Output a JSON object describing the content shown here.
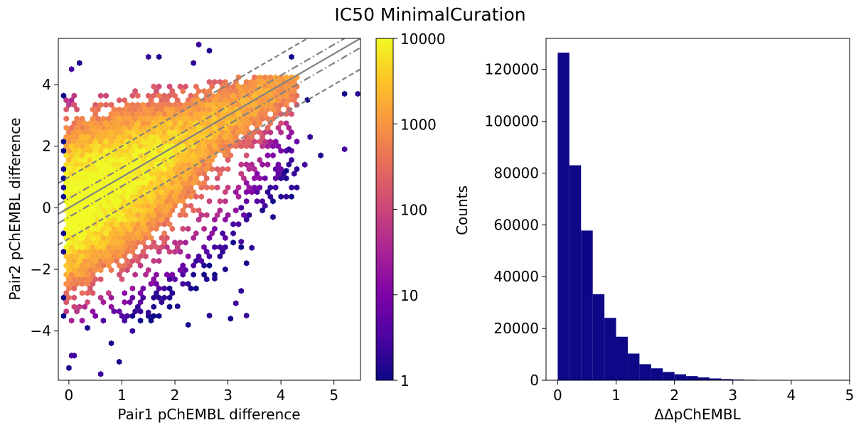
{
  "figure": {
    "title": "IC50 MinimalCuration"
  },
  "chart_data": [
    {
      "type": "hexbin",
      "xlabel": "Pair1 pChEMBL difference",
      "ylabel": "Pair2 pChEMBL difference",
      "xlim": [
        -0.2,
        5.5
      ],
      "ylim": [
        -5.6,
        5.5
      ],
      "xticks": [
        0,
        1,
        2,
        3,
        4,
        5
      ],
      "yticks": [
        -4,
        -2,
        0,
        2,
        4
      ],
      "colorscale": "plasma",
      "color_scale_type": "log",
      "grid": false,
      "reference_lines": [
        {
          "style": "solid",
          "slope": 1,
          "intercept": 0
        },
        {
          "style": "dashdot",
          "slope": 1,
          "intercept": 0.3
        },
        {
          "style": "dashdot",
          "slope": 1,
          "intercept": -0.3
        },
        {
          "style": "dashed",
          "slope": 1,
          "intercept": 1.0
        },
        {
          "style": "dashed",
          "slope": 1,
          "intercept": -1.0
        }
      ],
      "isolated_points": [
        [
          0.05,
          4.5
        ],
        [
          0.2,
          4.7
        ],
        [
          0.05,
          -4.8
        ],
        [
          0.1,
          -4.8
        ],
        [
          0.0,
          -5.2
        ],
        [
          0.35,
          -3.9
        ],
        [
          0.6,
          -5.4
        ],
        [
          0.8,
          -4.4
        ],
        [
          0.95,
          -5.0
        ],
        [
          1.2,
          -4.0
        ],
        [
          1.5,
          -3.4
        ],
        [
          2.25,
          -3.8
        ],
        [
          2.65,
          -3.5
        ],
        [
          2.05,
          -3.2
        ],
        [
          2.45,
          5.3
        ],
        [
          2.65,
          5.1
        ],
        [
          1.5,
          4.9
        ],
        [
          1.7,
          4.9
        ],
        [
          2.35,
          4.7
        ],
        [
          4.2,
          4.9
        ],
        [
          4.15,
          1.9
        ],
        [
          4.55,
          2.3
        ],
        [
          4.75,
          1.7
        ],
        [
          5.2,
          1.9
        ],
        [
          4.1,
          1.2
        ],
        [
          4.5,
          3.5
        ],
        [
          5.2,
          3.7
        ],
        [
          5.45,
          3.7
        ],
        [
          4.45,
          1.4
        ],
        [
          3.25,
          0.0
        ],
        [
          3.85,
          -0.3
        ],
        [
          3.15,
          -3.1
        ],
        [
          3.25,
          -2.7
        ],
        [
          3.35,
          -3.5
        ],
        [
          3.05,
          -3.6
        ],
        [
          2.75,
          -2.3
        ],
        [
          2.95,
          -2.0
        ],
        [
          3.35,
          -1.8
        ],
        [
          3.45,
          -1.3
        ],
        [
          3.25,
          -1.1
        ]
      ],
      "colorbar": {
        "ticks": [
          1,
          10,
          100,
          1000,
          10000
        ],
        "tick_labels": [
          "1",
          "10",
          "100",
          "1000",
          "10000"
        ],
        "range": [
          1,
          10000
        ]
      }
    },
    {
      "type": "bar",
      "subtype": "histogram",
      "xlabel": "ΔΔpChEMBL",
      "ylabel": "Counts",
      "xlim": [
        -0.2,
        5.0
      ],
      "ylim": [
        0,
        132000
      ],
      "xticks": [
        0,
        1,
        2,
        3,
        4,
        5
      ],
      "yticks": [
        0,
        20000,
        40000,
        60000,
        80000,
        100000,
        120000
      ],
      "bin_width": 0.2,
      "bin_starts": [
        0.0,
        0.2,
        0.4,
        0.6,
        0.8,
        1.0,
        1.2,
        1.4,
        1.6,
        1.8,
        2.0,
        2.2,
        2.4,
        2.6,
        2.8,
        3.0,
        3.2,
        3.4,
        3.6
      ],
      "values": [
        126500,
        83000,
        57800,
        33200,
        24100,
        16800,
        10300,
        6200,
        4600,
        3200,
        2300,
        1600,
        1100,
        700,
        450,
        300,
        200,
        130,
        90
      ],
      "color": "#0d0887",
      "grid": false
    }
  ]
}
